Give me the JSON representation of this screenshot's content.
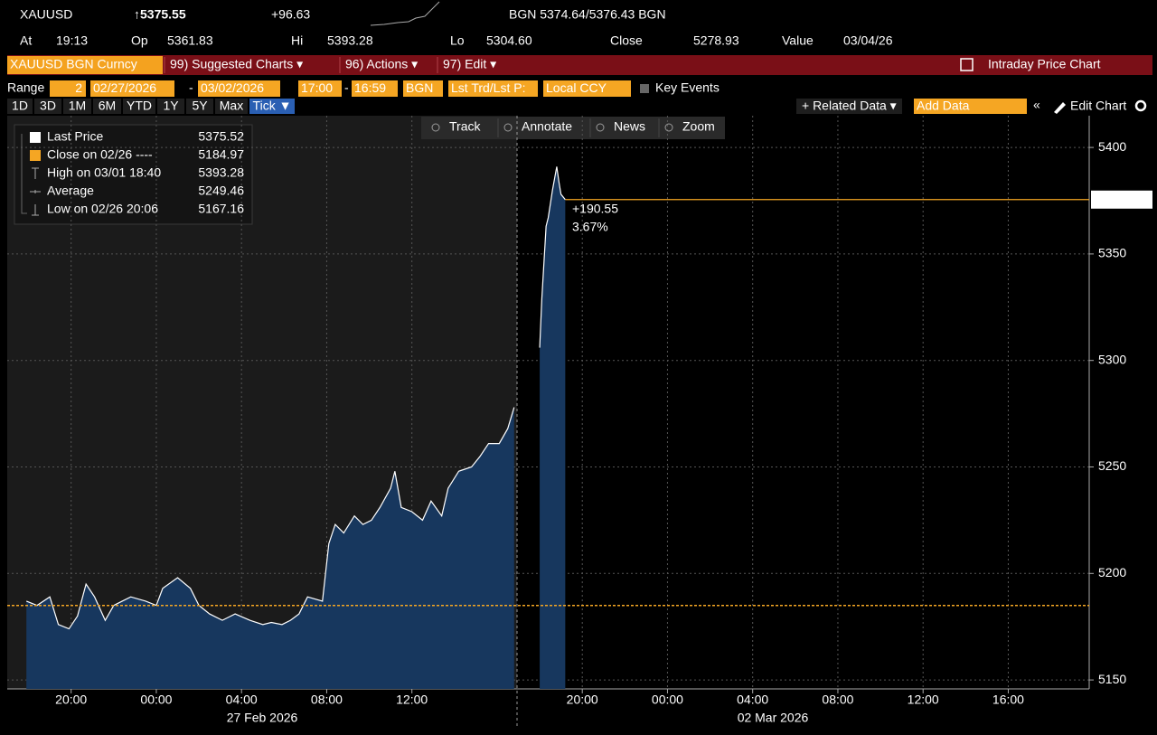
{
  "header": {
    "symbol": "XAUUSD",
    "last": "↑5375.55",
    "change": "+96.63",
    "quote": "BGN 5374.64/5376.43 BGN"
  },
  "stats": [
    {
      "label": "At",
      "value": "19:13"
    },
    {
      "label": "Op",
      "value": "5361.83"
    },
    {
      "label": "Hi",
      "value": "5393.28"
    },
    {
      "label": "Lo",
      "value": "5304.60"
    },
    {
      "label": "Close",
      "value": "5278.93"
    },
    {
      "label": "Value",
      "value": "03/04/26"
    }
  ],
  "menu": {
    "security": "XAUUSD BGN Curncy",
    "items": [
      "99) Suggested Charts ▾",
      "96) Actions ▾",
      "97) Edit ▾"
    ],
    "title": "Intraday Price Chart"
  },
  "range": {
    "label": "Range",
    "period": "2",
    "start": "02/27/2026",
    "dash": "-",
    "end": "03/02/2026",
    "time_start": "17:00",
    "time_dash": "-",
    "time_end": "16:59",
    "source": "BGN",
    "field": "Lst Trd/Lst P:",
    "currency": "Local CCY",
    "events": "Key Events"
  },
  "periods": [
    "1D",
    "3D",
    "1M",
    "6M",
    "YTD",
    "1Y",
    "5Y",
    "Max",
    "Tick ▼"
  ],
  "tools": {
    "related": "+ Related Data ▾",
    "add": "Add Data",
    "back": "«",
    "edit": "Edit Chart"
  },
  "chart_toolbar": [
    "Track",
    "Annotate",
    "News",
    "Zoom"
  ],
  "chart_data": {
    "type": "area",
    "series": [
      {
        "name": "Last Price",
        "color": "#ffffff",
        "fill": "#17375e",
        "values": [
          5187,
          5185,
          5189,
          5176,
          5174,
          5180,
          5195,
          5189,
          5178,
          5185,
          5187,
          5189,
          5187,
          5185,
          5193,
          5198,
          5193,
          5185,
          5181,
          5178,
          5181,
          5178,
          5176,
          5177,
          5176,
          5178,
          5181,
          5189,
          5187,
          5214,
          5223,
          5219,
          5227,
          5223,
          5225,
          5231,
          5240,
          5248,
          5231,
          5229,
          5225,
          5234,
          5227,
          5240,
          5248,
          5250,
          5255,
          5261,
          5261,
          5268,
          5278,
          null,
          5306,
          5329,
          5346,
          5363,
          5367,
          5380,
          5391,
          5384,
          5378,
          5375.52
        ]
      }
    ],
    "x": [
      0.9,
      1.4,
      2.0,
      2.4,
      2.9,
      3.3,
      3.7,
      4.1,
      4.6,
      5.0,
      5.4,
      5.8,
      6.5,
      7.0,
      7.3,
      8.0,
      8.6,
      9.0,
      9.5,
      10.1,
      10.7,
      11.4,
      12.0,
      12.4,
      12.9,
      13.3,
      13.7,
      14.1,
      14.8,
      15.1,
      15.4,
      15.8,
      16.3,
      16.7,
      17.1,
      17.5,
      18.0,
      18.2,
      18.5,
      19.0,
      19.5,
      19.9,
      20.4,
      20.7,
      21.2,
      21.8,
      22.2,
      22.6,
      23.1,
      23.5,
      23.8,
      24.5,
      25.0,
      25.1,
      25.2,
      25.3,
      25.4,
      25.6,
      25.8,
      25.9,
      26.0,
      26.2
    ],
    "last_value": 5375.52,
    "close": {
      "name": "Close on 02/26 ----",
      "value": 5184.97,
      "color": "#f5a623"
    },
    "stats": [
      {
        "name": "High on 03/01 18:40",
        "value": 5393.28
      },
      {
        "name": "Average",
        "value": 5249.46
      },
      {
        "name": "Low on 02/26 20:06",
        "value": 5167.16
      }
    ],
    "annotation": {
      "change": "+190.55",
      "percent": "3.67%"
    },
    "xlim": [
      0,
      50.8
    ],
    "xticks": [
      {
        "value": 3,
        "label": "20:00"
      },
      {
        "value": 7,
        "label": "00:00"
      },
      {
        "value": 11,
        "label": "04:00"
      },
      {
        "value": 15,
        "label": "08:00"
      },
      {
        "value": 19,
        "label": "12:00"
      },
      {
        "value": 27,
        "label": "20:00"
      },
      {
        "value": 31,
        "label": "00:00"
      },
      {
        "value": 35,
        "label": "04:00"
      },
      {
        "value": 39,
        "label": "08:00"
      },
      {
        "value": 43,
        "label": "12:00"
      },
      {
        "value": 47,
        "label": "16:00"
      }
    ],
    "date_labels": [
      "27 Feb 2026",
      "02 Mar 2026"
    ],
    "ylim": [
      5145.8,
      5414.9
    ],
    "yticks": [
      5150,
      5200,
      5250,
      5300,
      5350,
      5400
    ],
    "grid": true
  }
}
